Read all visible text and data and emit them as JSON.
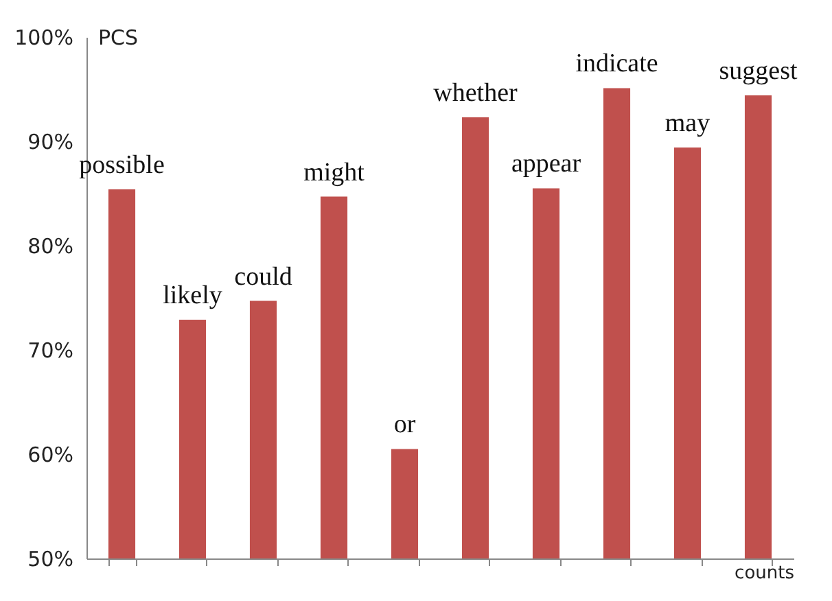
{
  "chart_data": {
    "type": "bar",
    "xlabel": "counts",
    "ylabel": "PCS",
    "categories": [
      "possible",
      "likely",
      "could",
      "might",
      "or",
      "whether",
      "appear",
      "indicate",
      "may",
      "suggest"
    ],
    "values": [
      85.4,
      72.9,
      74.7,
      84.7,
      60.5,
      92.3,
      85.5,
      95.1,
      89.4,
      94.4
    ],
    "color": "#c0504d",
    "ylim": [
      50,
      100
    ],
    "yticks": [
      {
        "value": 50,
        "label": "50%"
      },
      {
        "value": 60,
        "label": "60%"
      },
      {
        "value": 70,
        "label": "70%"
      },
      {
        "value": 80,
        "label": "80%"
      },
      {
        "value": 90,
        "label": "90%"
      },
      {
        "value": 100,
        "label": "100%"
      }
    ],
    "tick_labels": "y"
  }
}
